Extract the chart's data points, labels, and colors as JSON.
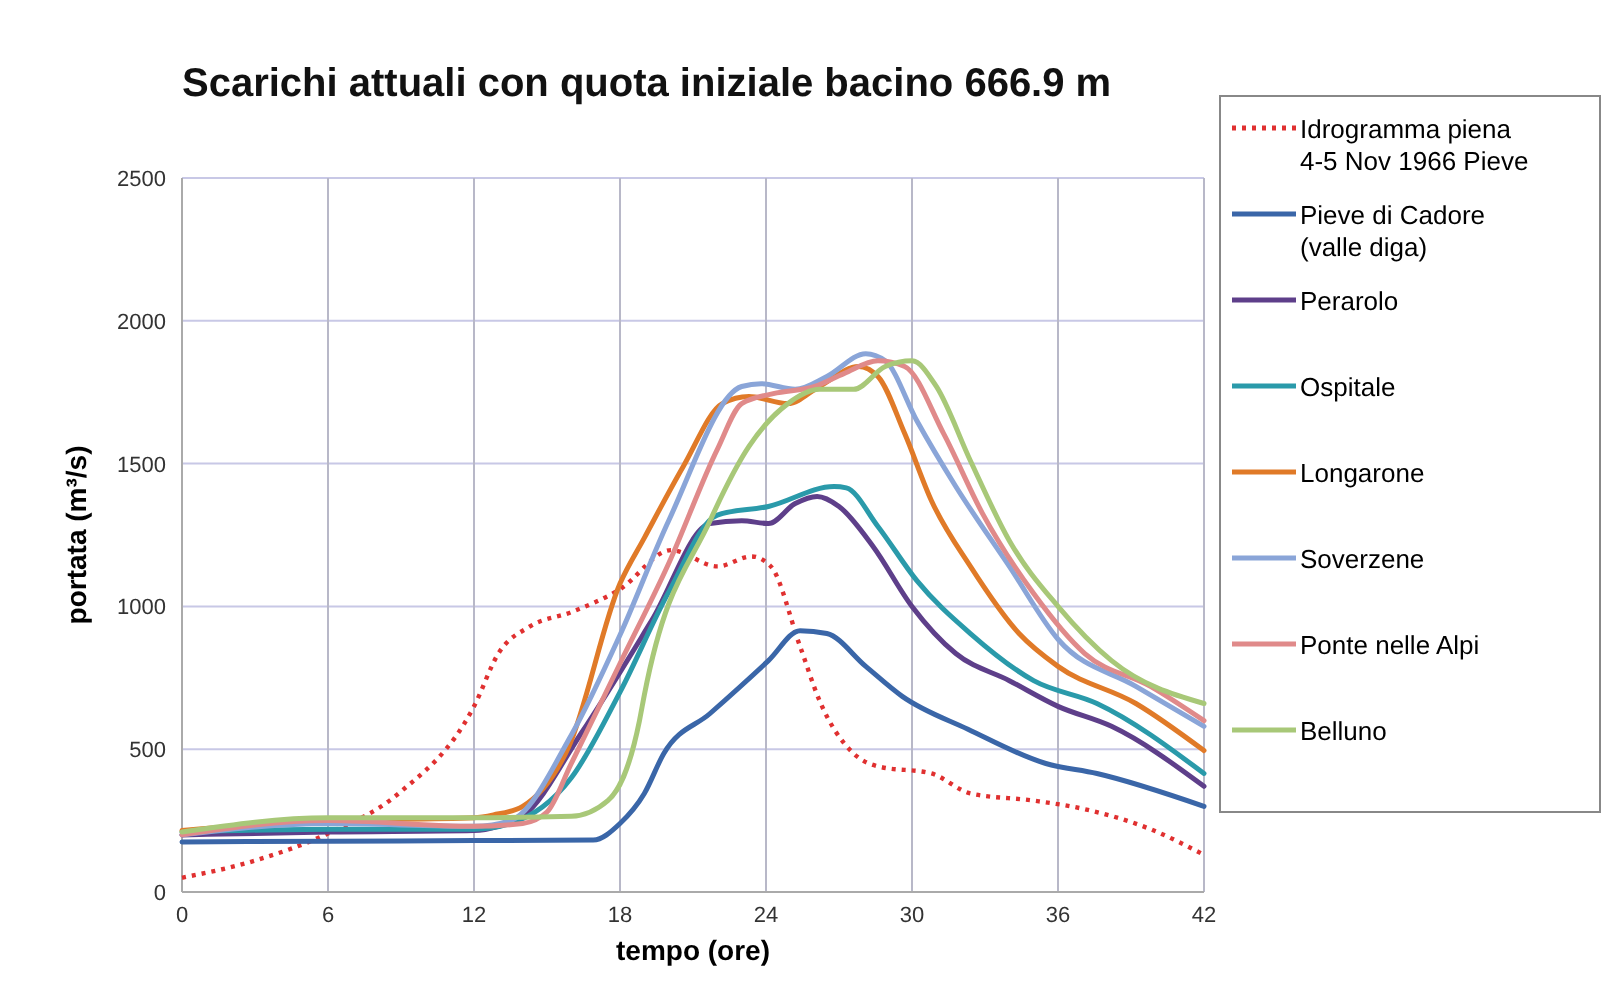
{
  "chart_data": {
    "type": "line",
    "title": "Scarichi attuali con quota iniziale bacino 666.9 m",
    "xlabel": "tempo (ore)",
    "ylabel": "portata (m³/s)",
    "xlim": [
      0,
      42
    ],
    "xticks": [
      0,
      6,
      12,
      18,
      24,
      30,
      36,
      42
    ],
    "ylim": [
      0,
      2500
    ],
    "yticks": [
      0,
      500,
      1000,
      1500,
      2000,
      2500
    ],
    "grid": true,
    "legend": "right",
    "series": [
      {
        "name": "Idrogramma piena 4-5 Nov 1966 Pieve",
        "color": "#e03030",
        "line_style": "dotted",
        "x": [
          0,
          3,
          6,
          8.9,
          12,
          13,
          14.3,
          16,
          18,
          20.1,
          22,
          23.4,
          24.2,
          25.4,
          26.2,
          27.6,
          28.6,
          30.8,
          32.4,
          35,
          37.1,
          39.8,
          42
        ],
        "values": [
          50,
          110,
          205,
          345,
          650,
          835,
          930,
          980,
          1060,
          1197,
          1140,
          1175,
          1140,
          860,
          670,
          485,
          440,
          415,
          345,
          320,
          290,
          220,
          130
        ]
      },
      {
        "name": "Pieve di Cadore (valle diga)",
        "color": "#3a66a8",
        "x": [
          0,
          6,
          12,
          16.9,
          18,
          19,
          19.8,
          21.7,
          24.1,
          25.4,
          26.5,
          28.1,
          29.6,
          32.3,
          35.5,
          37.6,
          42
        ],
        "values": [
          175,
          178,
          180,
          182,
          240,
          345,
          485,
          625,
          810,
          915,
          905,
          790,
          685,
          570,
          450,
          415,
          300
        ]
      },
      {
        "name": "Perarolo",
        "color": "#5e3f8a",
        "x": [
          0,
          6,
          12,
          13,
          14,
          16.4,
          19.3,
          21.7,
          23,
          24.1,
          25.2,
          26.1,
          27,
          28.4,
          30,
          31.8,
          34,
          36,
          38.2,
          42
        ],
        "values": [
          200,
          210,
          215,
          230,
          265,
          555,
          950,
          1290,
          1300,
          1290,
          1360,
          1385,
          1350,
          1210,
          1000,
          835,
          740,
          650,
          580,
          370
        ]
      },
      {
        "name": "Ospitale",
        "color": "#2a9aaa",
        "x": [
          0,
          6,
          12,
          13.5,
          16,
          18,
          20,
          22,
          24.1,
          26.8,
          27.3,
          28.6,
          30.2,
          32.4,
          35,
          37.6,
          42
        ],
        "values": [
          210,
          220,
          220,
          240,
          400,
          700,
          1050,
          1320,
          1350,
          1420,
          1415,
          1280,
          1090,
          905,
          740,
          660,
          415
        ]
      },
      {
        "name": "Longarone",
        "color": "#e07a28",
        "x": [
          0,
          6,
          12,
          12.8,
          14,
          15.9,
          18,
          19,
          20.6,
          22.2,
          23.3,
          24.9,
          26.2,
          27.8,
          28.6,
          29.7,
          30.8,
          32.4,
          34.4,
          36,
          39.2,
          42
        ],
        "values": [
          215,
          250,
          260,
          270,
          300,
          510,
          1080,
          1240,
          1490,
          1710,
          1735,
          1710,
          1770,
          1840,
          1805,
          1605,
          1370,
          1140,
          905,
          790,
          660,
          495
        ]
      },
      {
        "name": "Soverzene",
        "color": "#8aa5d8",
        "x": [
          0,
          6,
          12,
          13.5,
          16,
          18,
          20,
          23,
          23.8,
          25.2,
          26.5,
          28.1,
          28.9,
          30.2,
          31.8,
          34,
          36,
          39.2,
          42
        ],
        "values": [
          200,
          240,
          230,
          250,
          550,
          900,
          1300,
          1770,
          1780,
          1760,
          1805,
          1885,
          1860,
          1650,
          1420,
          1140,
          885,
          720,
          580
        ]
      },
      {
        "name": "Ponte nelle Alpi",
        "color": "#e08a8a",
        "x": [
          0,
          6,
          12,
          14,
          15,
          16,
          18,
          20,
          22,
          23,
          24.3,
          26,
          27.2,
          28.6,
          29.7,
          31.3,
          32.9,
          35,
          37.1,
          39.8,
          42
        ],
        "values": [
          200,
          250,
          230,
          240,
          280,
          450,
          800,
          1150,
          1550,
          1710,
          1745,
          1770,
          1815,
          1860,
          1840,
          1605,
          1325,
          1045,
          835,
          720,
          600
        ]
      },
      {
        "name": "Belluno",
        "color": "#a8c878",
        "x": [
          0,
          6,
          12,
          16,
          17.5,
          18.8,
          19,
          21.7,
          23.3,
          24.9,
          26.2,
          27.6,
          28.9,
          30,
          31,
          32.4,
          34,
          36,
          38.2,
          42
        ],
        "values": [
          210,
          260,
          260,
          265,
          320,
          600,
          690,
          1300,
          1560,
          1710,
          1760,
          1760,
          1840,
          1860,
          1770,
          1510,
          1230,
          1000,
          810,
          660
        ]
      }
    ]
  }
}
